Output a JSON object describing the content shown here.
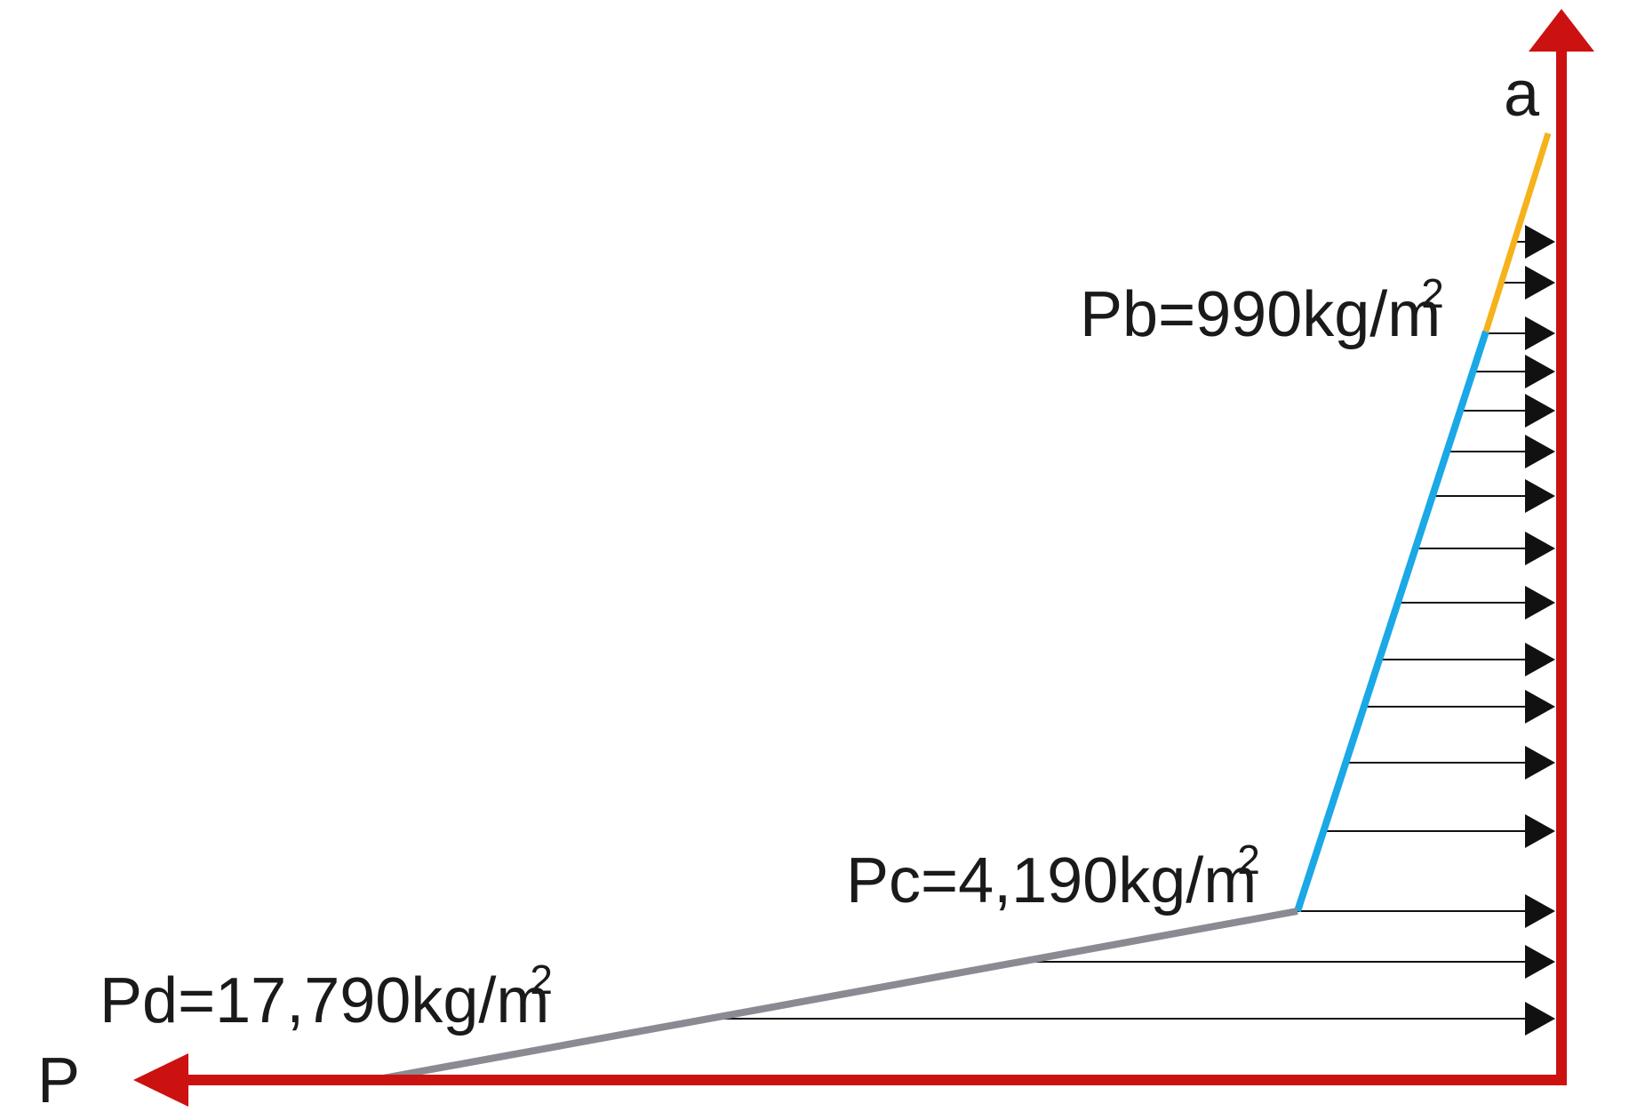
{
  "diagram": {
    "point_a_label": "a",
    "axis_p_label": "P",
    "pressures": {
      "pb": {
        "label": "Pb=990kg/m",
        "sup": "2"
      },
      "pc": {
        "label": "Pc=4,190kg/m",
        "sup": "2"
      },
      "pd": {
        "label": "Pd=17,790kg/m",
        "sup": "2"
      }
    },
    "colors": {
      "axis": "#cc1111",
      "segment_ab": "#f5b21b",
      "segment_bc": "#1aa8e6",
      "segment_cd": "#8a8a92",
      "load_arrows": "#111111"
    }
  }
}
